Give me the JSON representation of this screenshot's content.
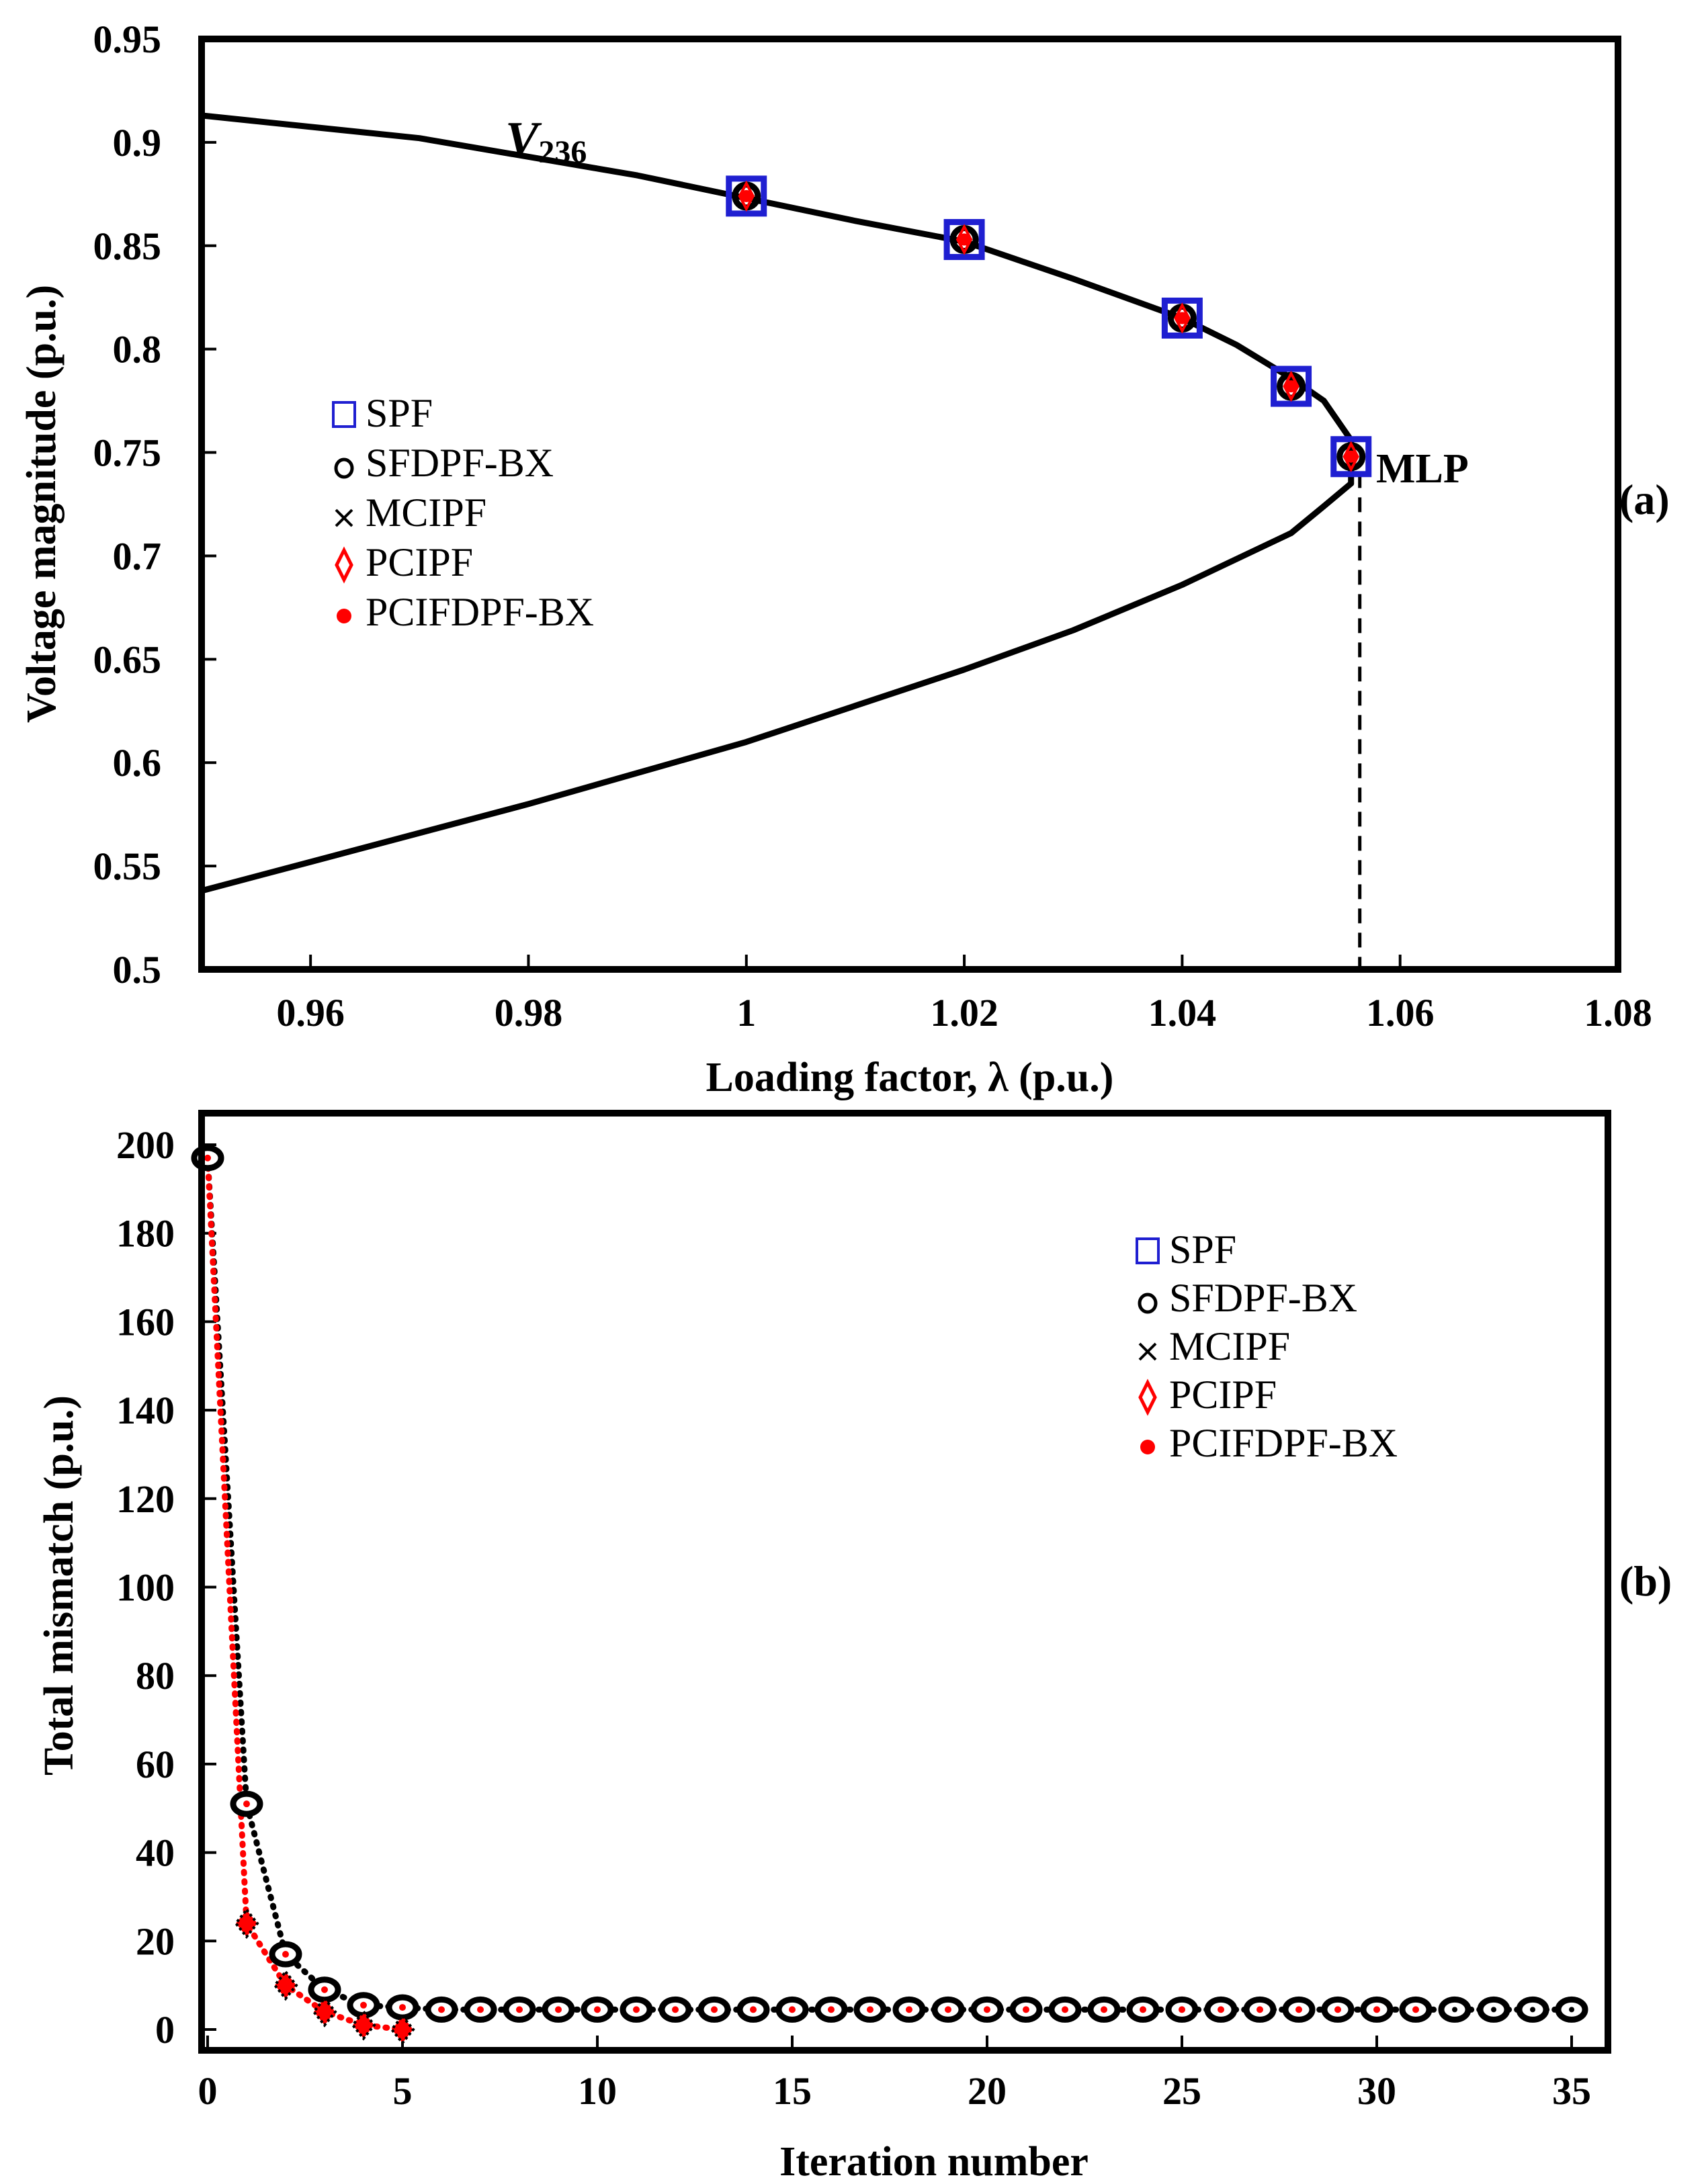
{
  "chart_data": [
    {
      "panel": "(a)",
      "type": "line",
      "xlabel": "Loading factor, λ (p.u.)",
      "ylabel": "Voltage magnitude (p.u.)",
      "xlim": [
        0.95,
        1.08
      ],
      "ylim": [
        0.5,
        0.95
      ],
      "xticks": [
        "0.96",
        "0.98",
        "1",
        "1.02",
        "1.04",
        "1.06",
        "1.08"
      ],
      "yticks": [
        "0.5",
        "0.55",
        "0.6",
        "0.65",
        "0.7",
        "0.75",
        "0.8",
        "0.85",
        "0.9",
        "0.95"
      ],
      "curve_label_main": "V",
      "curve_label_sub": "236",
      "annotation": "MLP",
      "upper_branch": [
        [
          0.95,
          0.913
        ],
        [
          0.97,
          0.902
        ],
        [
          0.99,
          0.884
        ],
        [
          1.0,
          0.873
        ],
        [
          1.01,
          0.862
        ],
        [
          1.02,
          0.852
        ],
        [
          1.03,
          0.834
        ],
        [
          1.04,
          0.815
        ],
        [
          1.045,
          0.802
        ],
        [
          1.05,
          0.786
        ],
        [
          1.053,
          0.775
        ],
        [
          1.0555,
          0.756
        ]
      ],
      "lower_branch": [
        [
          1.0555,
          0.735
        ],
        [
          1.053,
          0.724
        ],
        [
          1.05,
          0.711
        ],
        [
          1.04,
          0.686
        ],
        [
          1.03,
          0.664
        ],
        [
          1.02,
          0.645
        ],
        [
          1.0,
          0.61
        ],
        [
          0.98,
          0.58
        ],
        [
          0.96,
          0.552
        ],
        [
          0.95,
          0.538
        ]
      ],
      "markers": [
        [
          1.0,
          0.874
        ],
        [
          1.02,
          0.853
        ],
        [
          1.04,
          0.815
        ],
        [
          1.05,
          0.782
        ],
        [
          1.0555,
          0.748
        ]
      ],
      "mlp_x": 1.0563,
      "legend": [
        "SPF",
        "SFDPF-BX",
        "MCIPF",
        "PCIPF",
        "PCIFDPF-BX"
      ],
      "legend_markers": [
        "□",
        "o",
        "×",
        "◊",
        "●"
      ]
    },
    {
      "panel": "(b)",
      "type": "line",
      "xlabel": "Iteration number",
      "ylabel": "Total mismatch (p.u.)",
      "xlim": [
        0,
        36
      ],
      "ylim": [
        0,
        200
      ],
      "xticks": [
        "0",
        "5",
        "10",
        "15",
        "20",
        "25",
        "30",
        "35"
      ],
      "yticks": [
        "0",
        "20",
        "40",
        "60",
        "80",
        "100",
        "120",
        "140",
        "160",
        "180",
        "200"
      ],
      "series": [
        {
          "name": "SFDPF-BX",
          "color": "#000000",
          "x": [
            0,
            1,
            2,
            3,
            4,
            5,
            6,
            7,
            8,
            9,
            10,
            11,
            12,
            13,
            14,
            15,
            16,
            17,
            18,
            19,
            20,
            21,
            22,
            23,
            24,
            25,
            26,
            27,
            28,
            29,
            30,
            31,
            32,
            33,
            34,
            35
          ],
          "values": [
            197,
            51,
            17,
            9,
            5.5,
            5,
            4.5,
            4.5,
            4.5,
            4.5,
            4.5,
            4.5,
            4.5,
            4.5,
            4.5,
            4.5,
            4.5,
            4.5,
            4.5,
            4.5,
            4.5,
            4.5,
            4.5,
            4.5,
            4.5,
            4.5,
            4.5,
            4.5,
            4.5,
            4.5,
            4.5,
            4.5,
            4.5,
            4.5,
            4.5,
            4.5
          ]
        },
        {
          "name": "PCIPF",
          "color": "#ff0000",
          "x": [
            0,
            1,
            2,
            3,
            4,
            5
          ],
          "values": [
            197,
            24,
            10,
            4,
            1,
            0
          ]
        }
      ],
      "legend": [
        "SPF",
        "SFDPF-BX",
        "MCIPF",
        "PCIPF",
        "PCIFDPF-BX"
      ],
      "legend_markers": [
        "□",
        "o",
        "×",
        "◊",
        "●"
      ]
    }
  ],
  "colors": {
    "blue": "#1f1fd1",
    "red": "#ff0000",
    "black": "#000000"
  }
}
